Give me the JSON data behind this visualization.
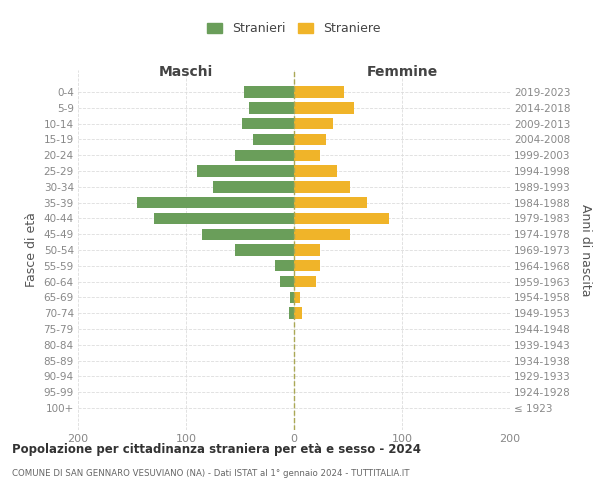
{
  "age_groups": [
    "100+",
    "95-99",
    "90-94",
    "85-89",
    "80-84",
    "75-79",
    "70-74",
    "65-69",
    "60-64",
    "55-59",
    "50-54",
    "45-49",
    "40-44",
    "35-39",
    "30-34",
    "25-29",
    "20-24",
    "15-19",
    "10-14",
    "5-9",
    "0-4"
  ],
  "birth_years": [
    "≤ 1923",
    "1924-1928",
    "1929-1933",
    "1934-1938",
    "1939-1943",
    "1944-1948",
    "1949-1953",
    "1954-1958",
    "1959-1963",
    "1964-1968",
    "1969-1973",
    "1974-1978",
    "1979-1983",
    "1984-1988",
    "1989-1993",
    "1994-1998",
    "1999-2003",
    "2004-2008",
    "2009-2013",
    "2014-2018",
    "2019-2023"
  ],
  "males": [
    0,
    0,
    0,
    0,
    0,
    0,
    5,
    4,
    13,
    18,
    55,
    85,
    130,
    145,
    75,
    90,
    55,
    38,
    48,
    42,
    46
  ],
  "females": [
    0,
    0,
    0,
    0,
    0,
    0,
    7,
    6,
    20,
    24,
    24,
    52,
    88,
    68,
    52,
    40,
    24,
    30,
    36,
    56,
    46
  ],
  "color_males": "#6a9e5a",
  "color_females": "#f0b429",
  "title": "Popolazione per cittadinanza straniera per età e sesso - 2024",
  "subtitle": "COMUNE DI SAN GENNARO VESUVIANO (NA) - Dati ISTAT al 1° gennaio 2024 - TUTTITALIA.IT",
  "left_header": "Maschi",
  "right_header": "Femmine",
  "ylabel_left": "Fasce di età",
  "ylabel_right": "Anni di nascita",
  "legend_males": "Stranieri",
  "legend_females": "Straniere",
  "xlim": 200,
  "bg_color": "#ffffff",
  "grid_color": "#dddddd",
  "tick_color": "#888888",
  "label_color": "#555555"
}
